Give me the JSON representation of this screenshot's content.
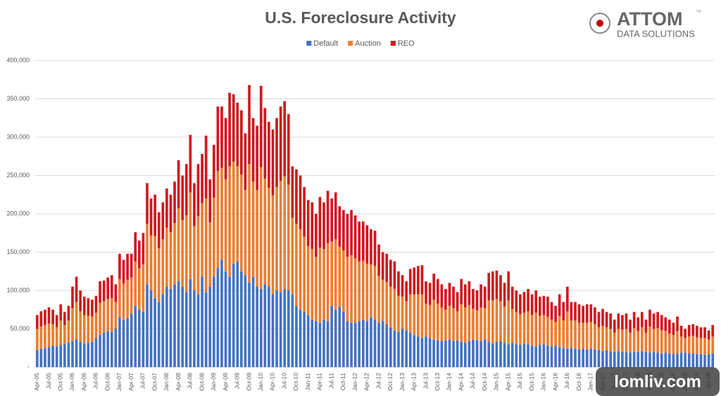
{
  "chart_data": {
    "type": "stacked_bar",
    "title": "U.S. Foreclosure Activity",
    "logo": {
      "name": "ATTOM",
      "tm": "™",
      "tagline": "DATA SOLUTIONS"
    },
    "watermark": "lomliv.com",
    "legend_position": "top",
    "grid": true,
    "ylim": [
      0,
      400000
    ],
    "yticks": [
      {
        "value": 0,
        "label": "-"
      },
      {
        "value": 50000,
        "label": "50,000"
      },
      {
        "value": 100000,
        "label": "100,000"
      },
      {
        "value": 150000,
        "label": "150,000"
      },
      {
        "value": 200000,
        "label": "200,000"
      },
      {
        "value": 250000,
        "label": "250,000"
      },
      {
        "value": 300000,
        "label": "300,000"
      },
      {
        "value": 350000,
        "label": "350,000"
      },
      {
        "value": 400000,
        "label": "400,000"
      }
    ],
    "categories": [
      "Apr-05",
      null,
      null,
      "Jul-05",
      null,
      null,
      "Oct-05",
      null,
      null,
      "Jan-06",
      null,
      null,
      "Apr-06",
      null,
      null,
      "Jul-06",
      null,
      null,
      "Oct-06",
      null,
      null,
      "Jan-07",
      null,
      null,
      "Apr-07",
      null,
      null,
      "Jul-07",
      null,
      null,
      "Oct-07",
      null,
      null,
      "Jan-08",
      null,
      null,
      "Apr-08",
      null,
      null,
      "Jul-08",
      null,
      null,
      "Oct-08",
      null,
      null,
      "Jan-09",
      null,
      null,
      "Apr-09",
      null,
      null,
      "Jul-09",
      null,
      null,
      "Oct-09",
      null,
      null,
      "Jan-10",
      null,
      null,
      "Apr-10",
      null,
      null,
      "Jul-10",
      null,
      null,
      "Oct-10",
      null,
      null,
      "Jan-11",
      null,
      null,
      "Apr-11",
      null,
      null,
      "Jul-11",
      null,
      null,
      "Oct-11",
      null,
      null,
      "Jan-12",
      null,
      null,
      "Apr-12",
      null,
      null,
      "Jul-12",
      null,
      null,
      "Oct-12",
      null,
      null,
      "Jan-13",
      null,
      null,
      "Apr-13",
      null,
      null,
      "Jul-13",
      null,
      null,
      "Oct-13",
      null,
      null,
      "Jan-14",
      null,
      null,
      "Apr-14",
      null,
      null,
      "Jul-14",
      null,
      null,
      "Oct-14",
      null,
      null,
      "Jan-15",
      null,
      null,
      "Apr-15",
      null,
      null,
      "Jul-15",
      null,
      null,
      "Oct-15",
      null,
      null,
      "Jan-16",
      null,
      null,
      "Apr-16",
      null,
      null,
      "Jul-16",
      null,
      null,
      "Oct-16",
      null,
      null,
      "Jan-17",
      null,
      null,
      "Apr-17",
      null,
      null,
      "Jul-17",
      null,
      null,
      "Oct-17",
      null,
      null,
      "Jan-18",
      null,
      null,
      "Apr-18",
      null,
      null,
      "Jul-18",
      null,
      null,
      "Oct-18",
      null,
      null,
      "Jan-19",
      null,
      null,
      "Apr-19",
      null,
      null,
      "Jul-19",
      null
    ],
    "series": [
      {
        "name": "Default",
        "color": "#4472c4",
        "values": [
          22000,
          24000,
          25000,
          26000,
          28000,
          27000,
          29000,
          30000,
          32000,
          34000,
          36000,
          33000,
          31000,
          32000,
          33000,
          38000,
          42000,
          45000,
          47000,
          46000,
          50000,
          65000,
          62000,
          64000,
          70000,
          80000,
          75000,
          72000,
          108000,
          100000,
          90000,
          85000,
          95000,
          105000,
          102000,
          108000,
          112000,
          105000,
          98000,
          115000,
          100000,
          95000,
          118000,
          98000,
          105000,
          118000,
          130000,
          140000,
          125000,
          118000,
          135000,
          138000,
          125000,
          120000,
          110000,
          118000,
          105000,
          102000,
          108000,
          105000,
          95000,
          100000,
          98000,
          102000,
          100000,
          95000,
          80000,
          75000,
          72000,
          68000,
          62000,
          60000,
          58000,
          62000,
          60000,
          80000,
          75000,
          78000,
          72000,
          60000,
          58000,
          58000,
          60000,
          62000,
          60000,
          65000,
          62000,
          58000,
          60000,
          56000,
          52000,
          48000,
          46000,
          50000,
          48000,
          45000,
          42000,
          40000,
          38000,
          40000,
          38000,
          36000,
          35000,
          34000,
          35000,
          36000,
          34000,
          35000,
          33000,
          32000,
          34000,
          36000,
          35000,
          34000,
          36000,
          33000,
          31000,
          33000,
          34000,
          32000,
          30000,
          32000,
          30000,
          29000,
          31000,
          30000,
          28000,
          27000,
          29000,
          30000,
          28000,
          27000,
          28000,
          26000,
          25000,
          24000,
          25000,
          24000,
          23000,
          24000,
          23000,
          24000,
          23000,
          22000,
          21000,
          22000,
          21000,
          20000,
          21000,
          20000,
          20000,
          19000,
          20000,
          20000,
          21000,
          20000,
          19000,
          20000,
          19000,
          18000,
          19000,
          18000,
          17000,
          18000,
          19000,
          19000,
          18000,
          18000,
          17000,
          17000,
          16000,
          17000,
          18000
        ]
      },
      {
        "name": "Auction",
        "color": "#ed7d31",
        "values": [
          28000,
          29000,
          30000,
          31000,
          28000,
          25000,
          32000,
          25000,
          29000,
          43000,
          49000,
          40000,
          37000,
          35000,
          33000,
          33000,
          42000,
          41000,
          42000,
          44000,
          35000,
          50000,
          47000,
          50000,
          47000,
          58000,
          54000,
          62000,
          79000,
          72000,
          81000,
          70000,
          72000,
          77000,
          74000,
          80000,
          95000,
          87000,
          100000,
          113000,
          84000,
          102000,
          96000,
          122000,
          84000,
          103000,
          126000,
          120000,
          120000,
          144000,
          133000,
          124000,
          126000,
          111000,
          155000,
          124000,
          126000,
          159000,
          138000,
          129000,
          129000,
          135000,
          145000,
          147000,
          138000,
          100000,
          107000,
          105000,
          98000,
          90000,
          92000,
          84000,
          98000,
          92000,
          102000,
          84000,
          92000,
          79000,
          80000,
          84000,
          88000,
          84000,
          78000,
          77000,
          75000,
          69000,
          70000,
          61000,
          54000,
          55000,
          53000,
          54000,
          47000,
          42000,
          38000,
          50000,
          53000,
          55000,
          57000,
          43000,
          43000,
          52000,
          48000,
          44000,
          40000,
          44000,
          43000,
          38000,
          49000,
          46000,
          47000,
          40000,
          39000,
          44000,
          41000,
          54000,
          56000,
          56000,
          52000,
          47000,
          57000,
          44000,
          42000,
          40000,
          40000,
          43000,
          40000,
          44000,
          38000,
          38000,
          38000,
          35000,
          31000,
          41000,
          36000,
          49000,
          36000,
          37000,
          35000,
          34000,
          35000,
          35000,
          33000,
          30000,
          33000,
          30000,
          29000,
          25000,
          29000,
          29000,
          30000,
          26000,
          31000,
          27000,
          31000,
          25000,
          34000,
          30000,
          32000,
          30000,
          28000,
          26000,
          25000,
          29000,
          21000,
          19000,
          22000,
          23000,
          22000,
          21000,
          22000,
          19000,
          22000
        ]
      },
      {
        "name": "REO",
        "color": "#d0191f",
        "values": [
          18000,
          20000,
          20000,
          21000,
          19000,
          16000,
          21000,
          17000,
          19000,
          28000,
          33000,
          27000,
          24000,
          23000,
          22000,
          22000,
          28000,
          27000,
          28000,
          30000,
          23000,
          33000,
          31000,
          34000,
          31000,
          38000,
          36000,
          41000,
          53000,
          48000,
          54000,
          47000,
          48000,
          51000,
          49000,
          54000,
          63000,
          58000,
          67000,
          75000,
          56000,
          68000,
          64000,
          82000,
          56000,
          69000,
          84000,
          80000,
          80000,
          96000,
          88000,
          83000,
          84000,
          74000,
          103000,
          83000,
          84000,
          106000,
          92000,
          86000,
          86000,
          90000,
          97000,
          98000,
          92000,
          67000,
          71000,
          70000,
          65000,
          60000,
          61000,
          56000,
          66000,
          61000,
          68000,
          56000,
          61000,
          53000,
          53000,
          56000,
          59000,
          56000,
          52000,
          51000,
          50000,
          46000,
          46000,
          41000,
          36000,
          37000,
          35000,
          36000,
          32000,
          28000,
          26000,
          33000,
          35000,
          37000,
          38000,
          29000,
          29000,
          34000,
          32000,
          30000,
          27000,
          30000,
          28000,
          25000,
          33000,
          30000,
          31000,
          26000,
          26000,
          30000,
          28000,
          36000,
          38000,
          37000,
          34000,
          31000,
          38000,
          29000,
          28000,
          26000,
          27000,
          29000,
          27000,
          29000,
          25000,
          25000,
          26000,
          23000,
          21000,
          28000,
          24000,
          32000,
          24000,
          24000,
          24000,
          22000,
          24000,
          23000,
          22000,
          20000,
          22000,
          20000,
          20000,
          17000,
          20000,
          19000,
          20000,
          17000,
          21000,
          18000,
          20000,
          17000,
          22000,
          20000,
          21000,
          20000,
          18000,
          18000,
          16000,
          19000,
          14000,
          12000,
          15000,
          15000,
          15000,
          14000,
          14000,
          12000,
          15000
        ]
      }
    ]
  }
}
